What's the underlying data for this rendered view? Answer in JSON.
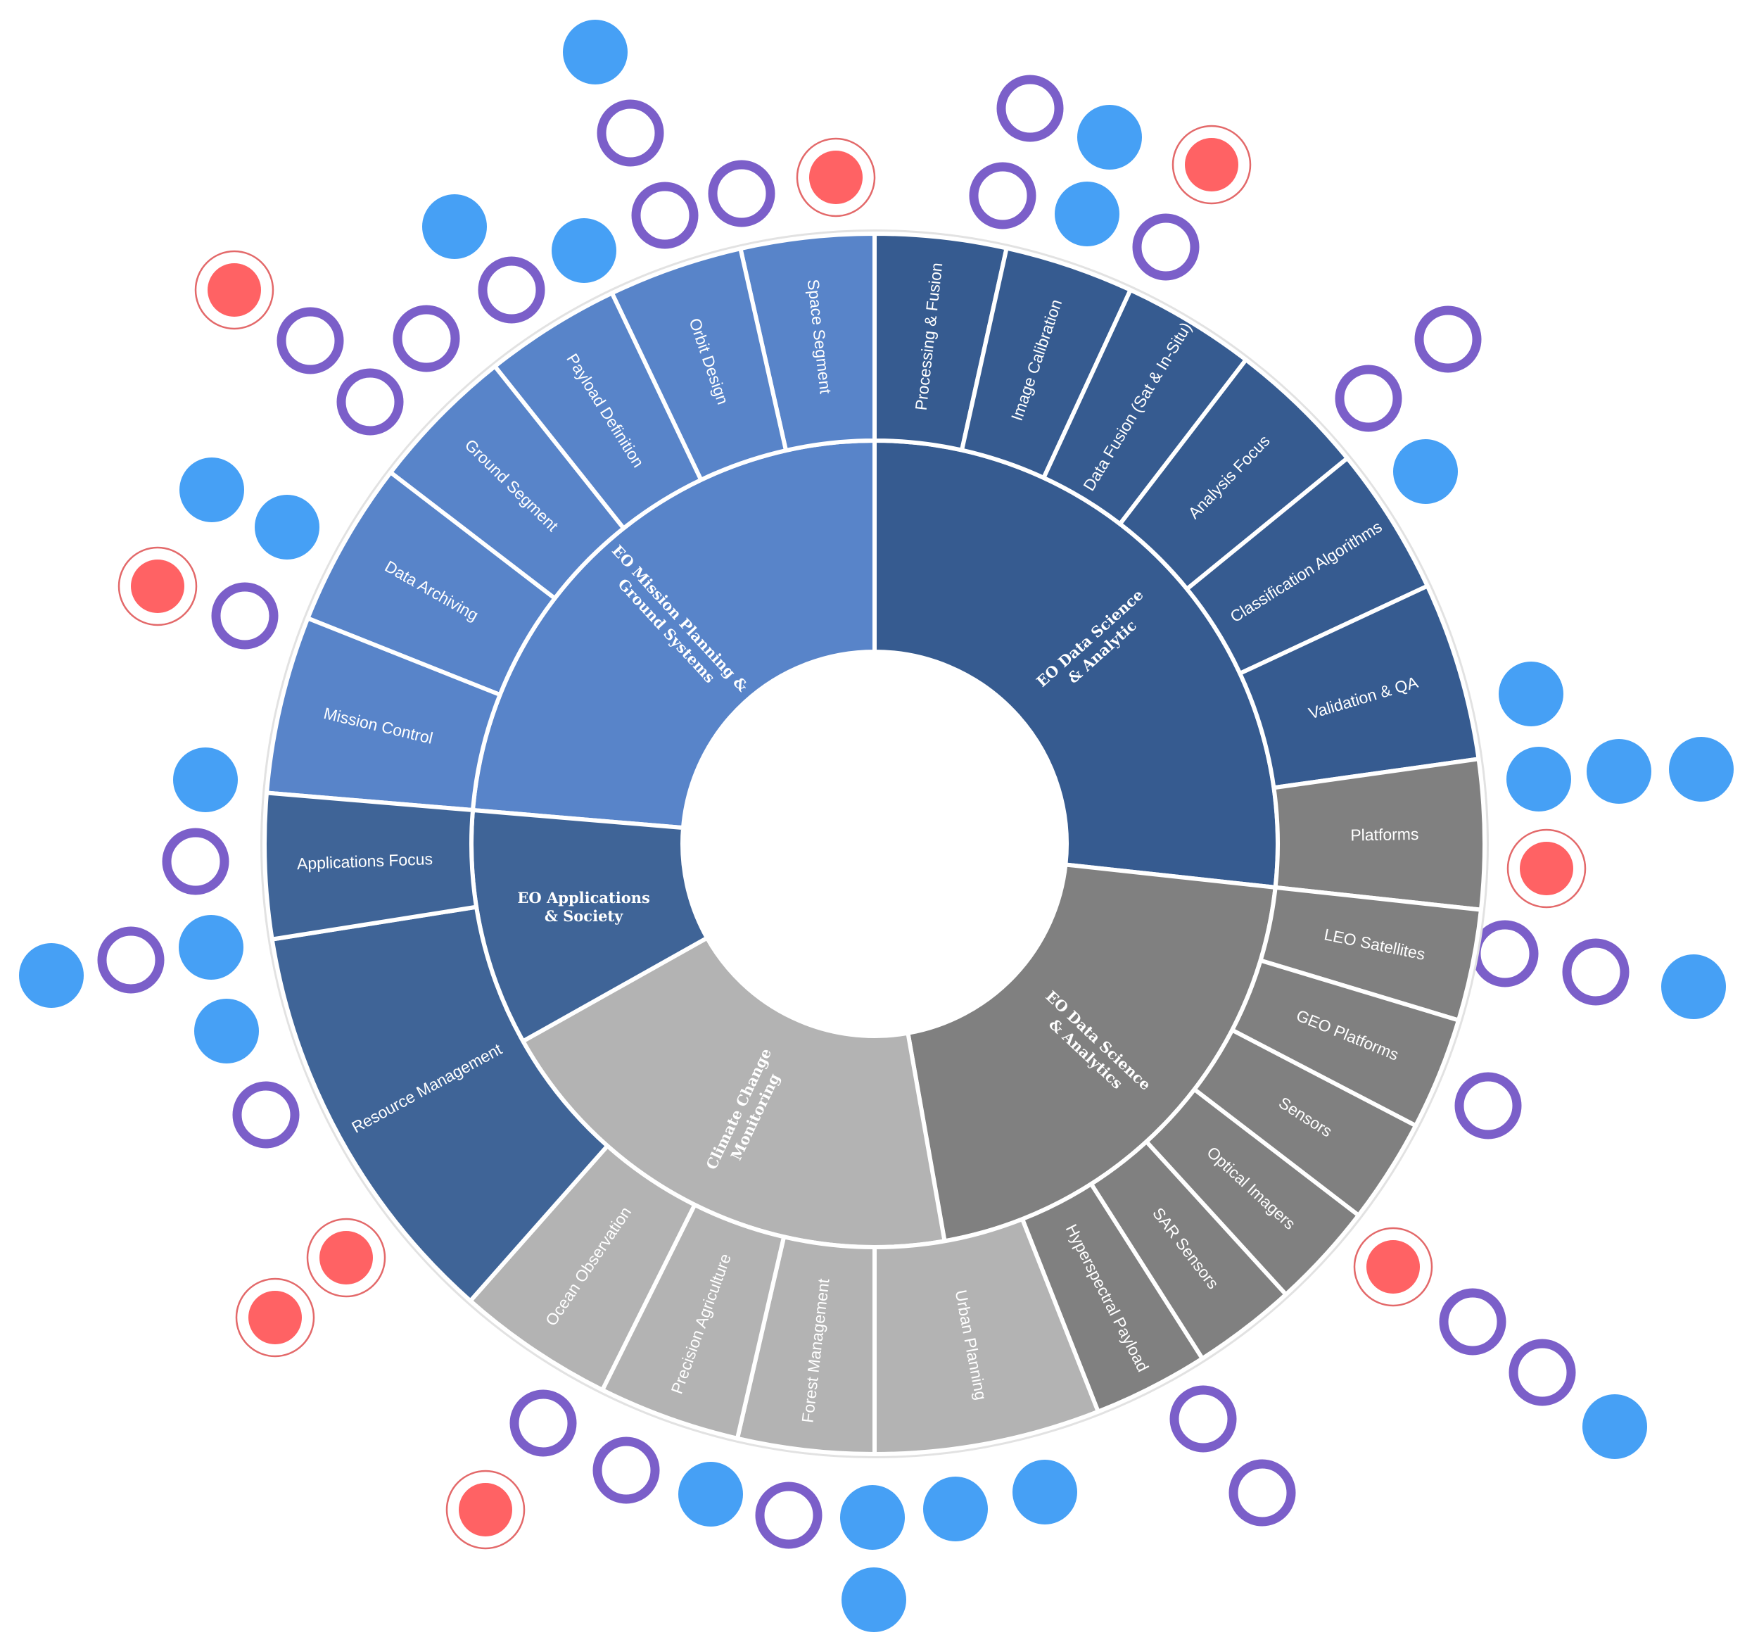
{
  "diagram": {
    "type": "sunburst",
    "colors": {
      "mission_planning": "#5884c9",
      "data_science_analytic": "#365b90",
      "data_science_analytics": "#808080",
      "climate": "#b3b3b3",
      "applications": "#3f6497",
      "ring_marker": "#7b5fc9",
      "dot_marker": "#46a0f5",
      "red_marker": "#ff6264"
    },
    "categories": [
      {
        "id": "mission_planning",
        "label_lines": [
          "EO Mission Planning &",
          "Ground Systems"
        ],
        "children": [
          "Space Segment",
          "Orbit Design",
          "Payload Definition",
          "Ground Segment",
          "Data Archiving",
          "Mission Control"
        ]
      },
      {
        "id": "data_science_analytic",
        "label_lines": [
          "EO Data Science",
          "& Analytic"
        ],
        "children": [
          "Processing & Fusion",
          "Image Calibration",
          "Data Fusion (Sat & In-Situ)",
          "Analysis Focus",
          "Classification Algorithms",
          "Validation & QA"
        ]
      },
      {
        "id": "data_science_analytics",
        "label_lines": [
          "EO Data Science",
          "& Analytics"
        ],
        "children": [
          "Platforms",
          "LEO Satellites",
          "GEO Platforms",
          "Sensors",
          "Optical Imagers",
          "SAR Sensors",
          "Hyperspectral Payload"
        ]
      },
      {
        "id": "climate",
        "label_lines": [
          "Climate Change",
          "Monitoring"
        ],
        "children": [
          "Urban Planning",
          "Forest Management",
          "Precision Agriculture",
          "Ocean Observation"
        ]
      },
      {
        "id": "applications",
        "label_lines": [
          "EO Applications",
          "& Society"
        ],
        "children": [
          "Resource Management",
          "Applications Focus"
        ]
      }
    ],
    "marker_types": [
      "ring",
      "dot",
      "red"
    ]
  }
}
